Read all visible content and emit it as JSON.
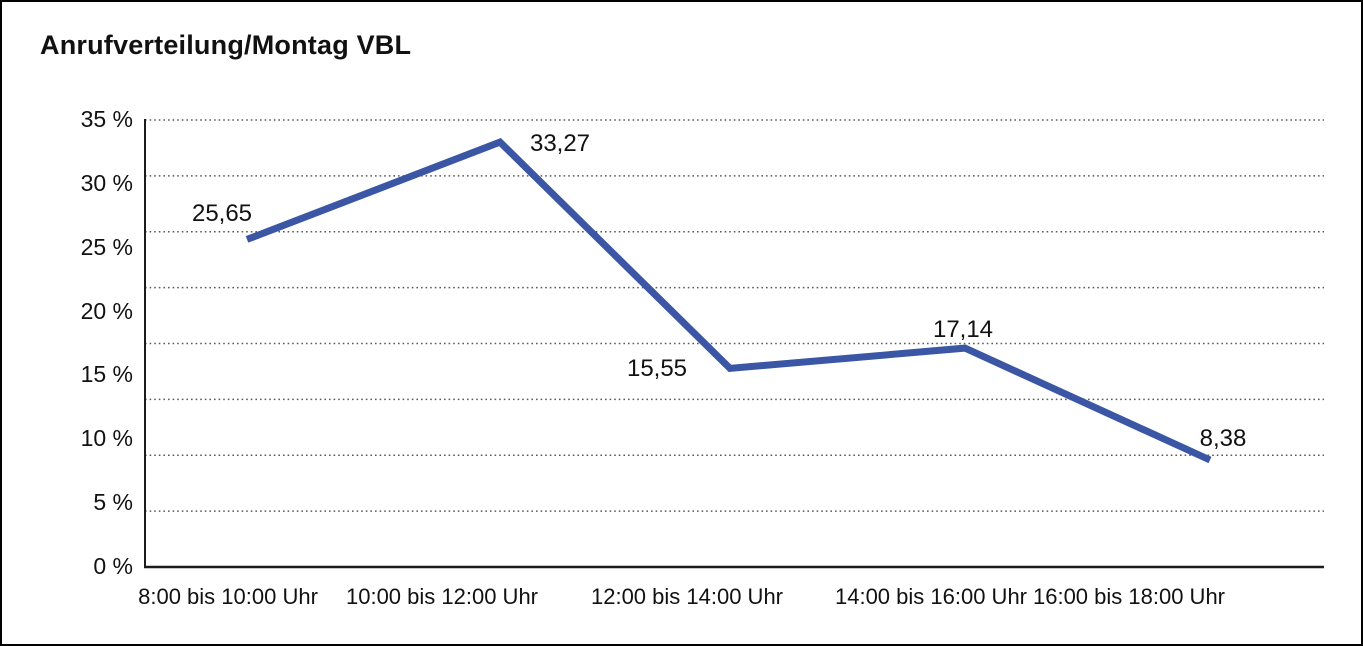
{
  "title": "Anrufverteilung/Montag VBL",
  "colors": {
    "line": "#3A56A4",
    "axis": "#1c1c1c",
    "grid_dots": "#5a5a5a",
    "text": "#111111",
    "background": "#ffffff",
    "border": "#000000"
  },
  "y_axis": {
    "tick_labels": [
      "35 %",
      "30 %",
      "25 %",
      "20 %",
      "15 %",
      "10 %",
      "5 %",
      "0 %"
    ]
  },
  "x_axis": {
    "tick_labels": [
      "8:00 bis 10:00 Uhr",
      "10:00 bis 12:00 Uhr",
      "12:00 bis 14:00 Uhr",
      "14:00 bis 16:00 Uhr",
      "16:00 bis 18:00 Uhr"
    ]
  },
  "chart_data": {
    "type": "line",
    "title": "Anrufverteilung/Montag VBL",
    "categories": [
      "8:00 bis 10:00 Uhr",
      "10:00 bis 12:00 Uhr",
      "12:00 bis 14:00 Uhr",
      "14:00 bis 16:00 Uhr",
      "16:00 bis 18:00 Uhr"
    ],
    "values": [
      25.65,
      33.27,
      15.55,
      17.14,
      8.38
    ],
    "point_labels": [
      "25,65",
      "33,27",
      "15,55",
      "17,14",
      "8,38"
    ],
    "xlabel": "",
    "ylabel": "",
    "ylim": [
      0,
      35
    ],
    "y_tick_values": [
      35,
      30,
      25,
      20,
      15,
      10,
      5,
      0
    ],
    "grid": "horizontal-dotted",
    "legend_position": "none",
    "series_name": "Anrufverteilung Montag VBL",
    "line_color": "#3A56A4"
  }
}
